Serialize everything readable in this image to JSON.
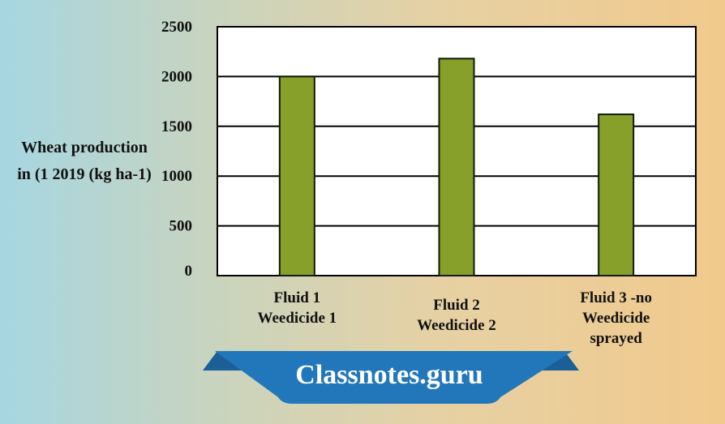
{
  "chart_data": {
    "type": "bar",
    "categories": [
      [
        "Fluid 1",
        "Weedicide 1"
      ],
      [
        "Fluid 2",
        "Weedicide 2"
      ],
      [
        "Fluid 3 -no",
        "Weedicide",
        "sprayed"
      ]
    ],
    "values": [
      2000,
      2180,
      1620
    ],
    "ylabel": [
      "Wheat production",
      "in (1 2019 (kg ha-1)"
    ],
    "ylim": [
      0,
      2500
    ],
    "yticks": [
      0,
      500,
      1000,
      1500,
      2000,
      2500
    ],
    "grid": true,
    "bar_color": "#86a02a",
    "bar_stroke": "#0f1a06"
  },
  "watermark": {
    "text": "Classnotes.guru",
    "color": "#1f73b7"
  }
}
